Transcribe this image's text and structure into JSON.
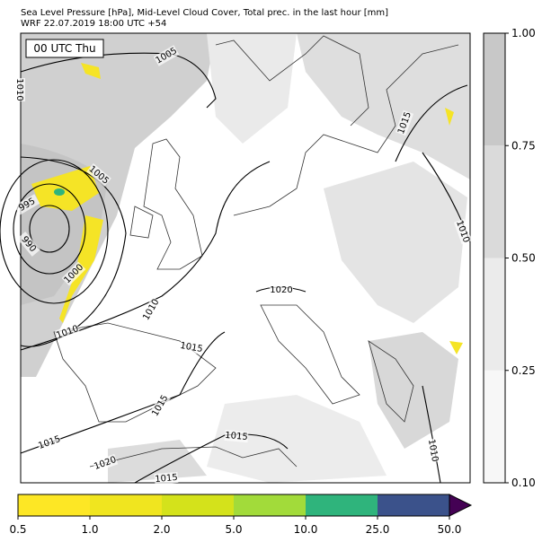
{
  "header": {
    "title": "Sea Level Pressure [hPa], Mid-Level Cloud Cover, Total prec. in the last hour [mm]",
    "subtitle": "WRF 22.07.2019 18:00 UTC +54"
  },
  "time_label": "00 UTC Thu",
  "isobar_labels": [
    "1005",
    "1010",
    "1015",
    "1005",
    "995",
    "990",
    "1000",
    "1010",
    "1020",
    "1010",
    "1010",
    "1015",
    "1015",
    "1015",
    "1015",
    "1020",
    "1015",
    "1010"
  ],
  "cloud_colorbar": {
    "ticks": [
      {
        "value": 0.1,
        "label": "0.10"
      },
      {
        "value": 0.25,
        "label": "0.25"
      },
      {
        "value": 0.5,
        "label": "0.50"
      },
      {
        "value": 0.75,
        "label": "0.75"
      },
      {
        "value": 1,
        "label": "1.00"
      }
    ],
    "colors": [
      "#f7f7f7",
      "#ebebeb",
      "#dadada",
      "#c8c8c8"
    ]
  },
  "precip_colorbar": {
    "ticks": [
      {
        "value": 0.5,
        "label": "0.5"
      },
      {
        "value": 1,
        "label": "1.0"
      },
      {
        "value": 2,
        "label": "2.0"
      },
      {
        "value": 5,
        "label": "5.0"
      },
      {
        "value": 10,
        "label": "10.0"
      },
      {
        "value": 25,
        "label": "25.0"
      },
      {
        "value": 50,
        "label": "50.0"
      }
    ],
    "colors": [
      "#fde725",
      "#f0e51f",
      "#d4e21b",
      "#a2db3a",
      "#2fb47c",
      "#3b528b"
    ],
    "extend_color": "#440154"
  }
}
